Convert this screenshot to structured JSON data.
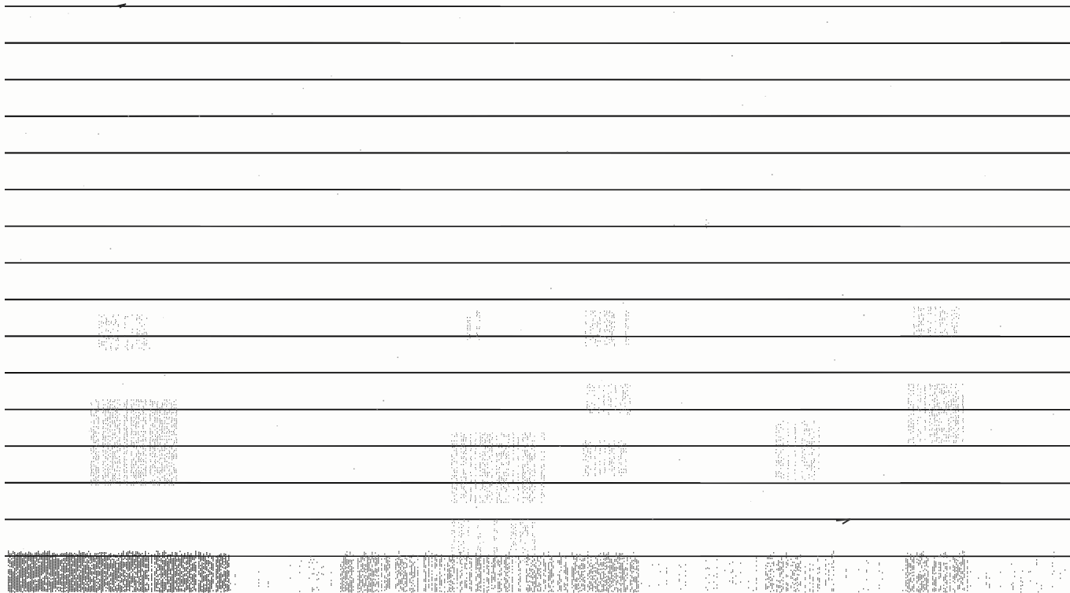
{
  "sheet": {
    "paper_color": "#fdfdfc",
    "ink_color": "#111111",
    "ruled_line_count": 16
  }
}
